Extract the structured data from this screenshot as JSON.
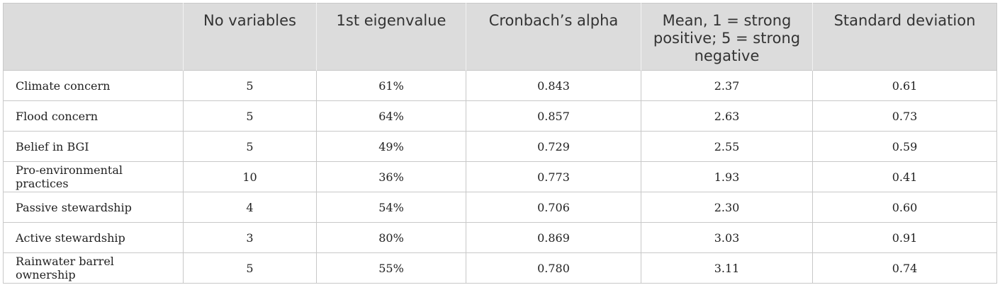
{
  "table": {
    "headers": [
      "",
      "No variables",
      "1st eigenvalue",
      "Cronbach’s alpha",
      "Mean, 1 = strong positive; 5 = strong negative",
      "Standard deviation"
    ],
    "rows": [
      [
        "Climate concern",
        "5",
        "61%",
        "0.843",
        "2.37",
        "0.61"
      ],
      [
        "Flood concern",
        "5",
        "64%",
        "0.857",
        "2.63",
        "0.73"
      ],
      [
        "Belief in BGI",
        "5",
        "49%",
        "0.729",
        "2.55",
        "0.59"
      ],
      [
        "Pro-environmental practices",
        "10",
        "36%",
        "0.773",
        "1.93",
        "0.41"
      ],
      [
        "Passive stewardship",
        "4",
        "54%",
        "0.706",
        "2.30",
        "0.60"
      ],
      [
        "Active stewardship",
        "3",
        "80%",
        "0.869",
        "3.03",
        "0.91"
      ],
      [
        "Rainwater barrel ownership",
        "5",
        "55%",
        "0.780",
        "3.11",
        "0.74"
      ]
    ]
  }
}
